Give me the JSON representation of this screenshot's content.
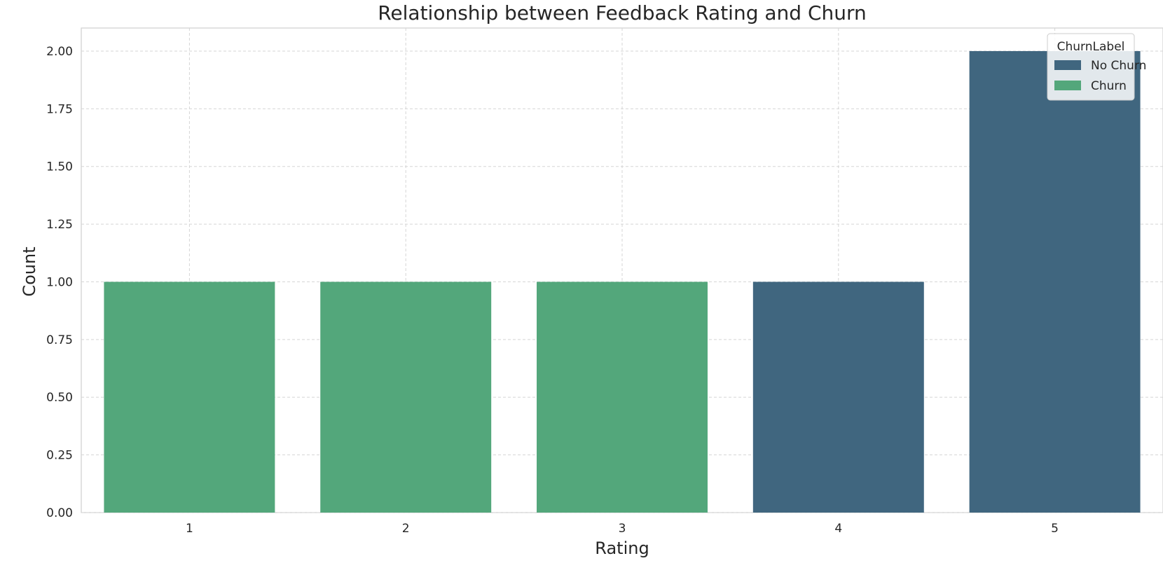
{
  "chart_data": {
    "type": "bar",
    "title": "Relationship between Feedback Rating and Churn",
    "xlabel": "Rating",
    "ylabel": "Count",
    "categories": [
      "1",
      "2",
      "3",
      "4",
      "5"
    ],
    "series": [
      {
        "name": "No Churn",
        "color": "#40667f",
        "values": [
          0,
          0,
          0,
          1,
          2
        ]
      },
      {
        "name": "Churn",
        "color": "#53a77b",
        "values": [
          1,
          1,
          1,
          0,
          0
        ]
      }
    ],
    "yticks": [
      "0.00",
      "0.25",
      "0.50",
      "0.75",
      "1.00",
      "1.25",
      "1.50",
      "1.75",
      "2.00"
    ],
    "ylim": [
      0,
      2.1
    ],
    "grid": true,
    "legend": {
      "title": "ChurnLabel",
      "placement": "top-right"
    }
  }
}
